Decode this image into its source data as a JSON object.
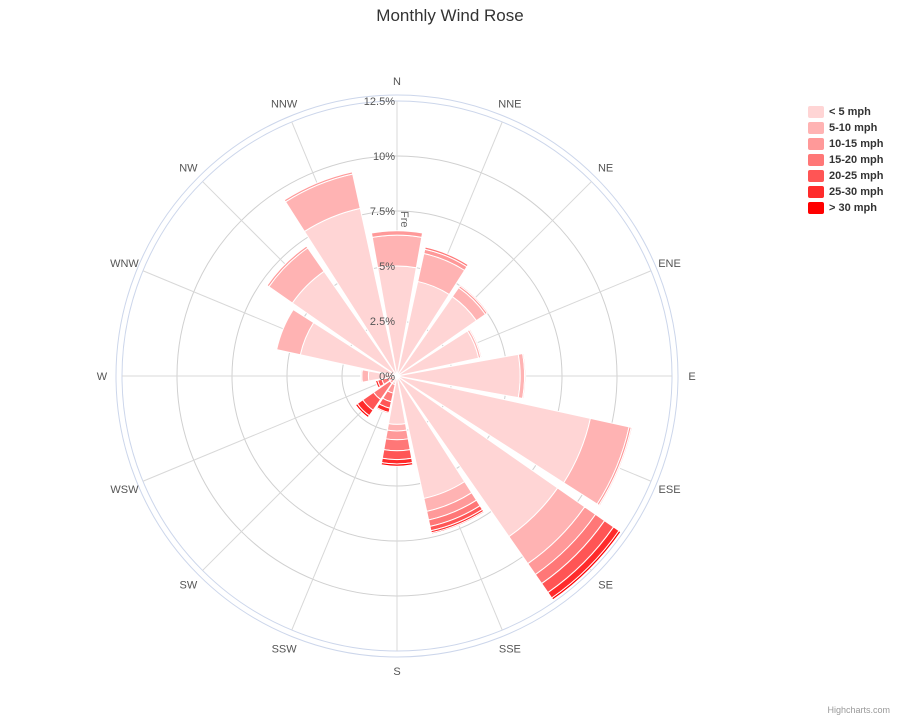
{
  "chart_data": {
    "type": "windrose",
    "title": "Monthly Wind Rose",
    "yaxis_title": "Fre",
    "directions": [
      "N",
      "NNE",
      "NE",
      "ENE",
      "E",
      "ESE",
      "SE",
      "SSE",
      "S",
      "SSW",
      "SW",
      "WSW",
      "W",
      "WNW",
      "NW",
      "NNW"
    ],
    "radial_ticks": [
      "0%",
      "2.5%",
      "5%",
      "7.5%",
      "10%",
      "12.5%"
    ],
    "radial_max": 12.5,
    "series": [
      {
        "name": "< 5 mph",
        "color": "#ffd5d5",
        "values": [
          5.0,
          4.4,
          4.4,
          3.8,
          5.6,
          9.0,
          8.9,
          5.7,
          2.2,
          0.3,
          0.0,
          0.0,
          1.3,
          4.5,
          5.8,
          7.8
        ]
      },
      {
        "name": "5-10 mph",
        "color": "#ffb3b3",
        "values": [
          1.4,
          1.3,
          0.5,
          0.1,
          0.2,
          1.8,
          1.5,
          0.6,
          0.3,
          0.1,
          0.0,
          0.1,
          0.3,
          1.1,
          1.3,
          1.6
        ]
      },
      {
        "name": "10-15 mph",
        "color": "#ff9999",
        "values": [
          0.2,
          0.2,
          0.1,
          0.05,
          0.05,
          0.1,
          0.6,
          0.4,
          0.4,
          0.4,
          0.4,
          0.3,
          0.05,
          0.0,
          0.1,
          0.1
        ]
      },
      {
        "name": "15-20 mph",
        "color": "#ff7777",
        "values": [
          0.0,
          0.1,
          0.05,
          0.0,
          0.0,
          0.05,
          0.5,
          0.3,
          0.5,
          0.4,
          0.9,
          0.3,
          0.0,
          0.0,
          0.0,
          0.0
        ]
      },
      {
        "name": "20-25 mph",
        "color": "#ff5555",
        "values": [
          0.0,
          0.0,
          0.0,
          0.0,
          0.0,
          0.0,
          0.5,
          0.2,
          0.4,
          0.3,
          0.6,
          0.2,
          0.0,
          0.0,
          0.0,
          0.0
        ]
      },
      {
        "name": "25-30 mph",
        "color": "#ff2b2b",
        "values": [
          0.0,
          0.0,
          0.0,
          0.0,
          0.0,
          0.0,
          0.3,
          0.1,
          0.2,
          0.2,
          0.3,
          0.1,
          0.0,
          0.0,
          0.0,
          0.0
        ]
      },
      {
        "name": "> 30 mph",
        "color": "#ff0000",
        "values": [
          0.0,
          0.0,
          0.0,
          0.0,
          0.0,
          0.0,
          0.1,
          0.05,
          0.1,
          0.05,
          0.1,
          0.0,
          0.0,
          0.0,
          0.0,
          0.0
        ]
      }
    ],
    "legend_position": "right",
    "credits": "Highcharts.com"
  }
}
